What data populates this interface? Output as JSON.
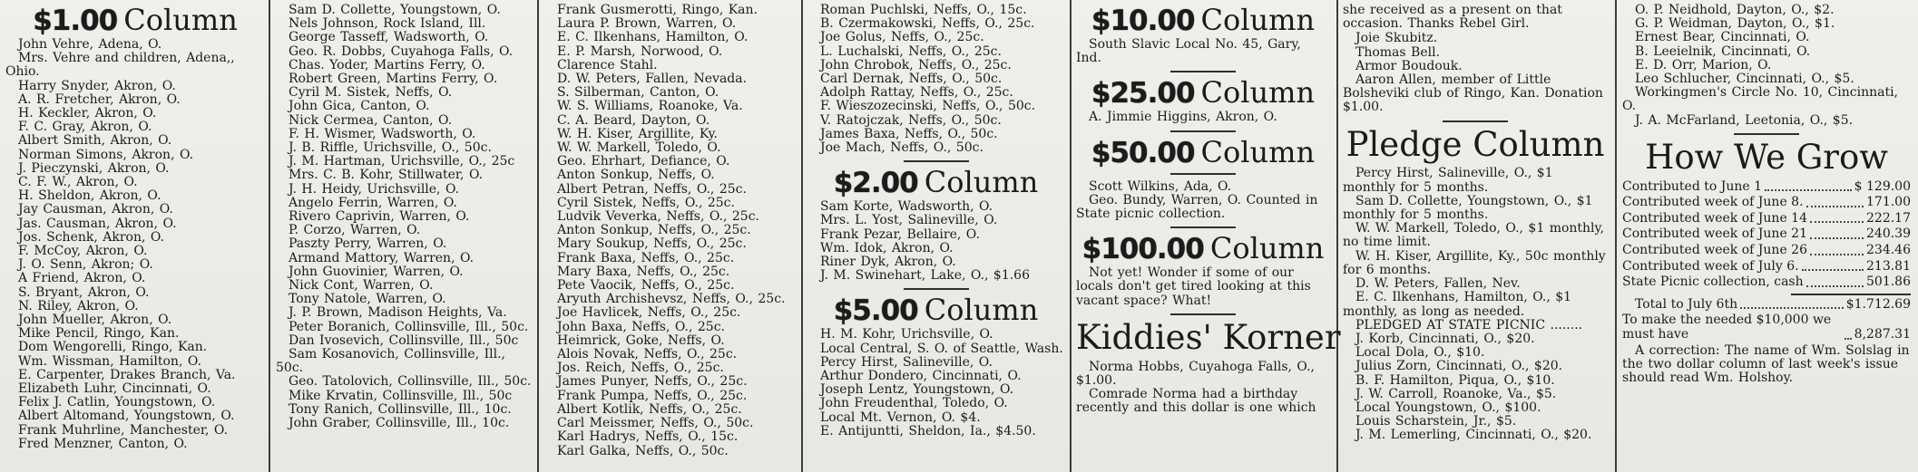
{
  "columns": {
    "col1": {
      "heading": {
        "amount": "$1.00",
        "word": "Column"
      },
      "entries": [
        "John Vehre, Adena, O.",
        "Mrs. Vehre and children, Adena,, Ohio.",
        "Harry Snyder, Akron, O.",
        "A. R. Fretcher, Akron, O.",
        "H. Keckler, Akron, O.",
        "F. C. Gray, Akron, O.",
        "Albert Smith, Akron, O.",
        "Norman Simons, Akron, O.",
        "J. Pieczynski, Akron, O.",
        "C. F. W., Akron, O.",
        "H. Sheldon, Akron, O.",
        "Jay Causman, Akron, O.",
        "Jas. Causman, Akron, O.",
        "Jos. Schenk, Akron, O.",
        "F. McCoy, Akron, O.",
        "J. O. Senn, Akron; O.",
        "A Friend, Akron, O.",
        "S. Bryant, Akron, O.",
        "N. Riley, Akron, O.",
        "John Mueller, Akron, O.",
        "Mike Pencil, Ringo, Kan.",
        "Dom Wengorelli, Ringo, Kan.",
        "Wm. Wissman, Hamilton, O.",
        "E. Carpenter, Drakes Branch, Va.",
        "Elizabeth Luhr, Cincinnati, O.",
        "Felix J. Catlin, Youngstown, O.",
        "Albert Altomand, Youngstown, O.",
        "Frank Muhrline, Manchester, O.",
        "Fred Menzner, Canton, O."
      ]
    },
    "col2": {
      "entries": [
        "Sam D. Collette, Youngstown, O.",
        "Nels Johnson, Rock Island, Ill.",
        "George Tasseff, Wadsworth, O.",
        "Geo. R. Dobbs, Cuyahoga Falls, O.",
        "Chas. Yoder, Martins Ferry, O.",
        "Robert Green, Martins Ferry, O.",
        "Cyril M. Sistek, Neffs, O.",
        "John Gica, Canton, O.",
        "Nick Cermea, Canton, O.",
        "F. H. Wismer, Wadsworth, O.",
        "J. B. Riffle, Urichsville, O., 50c.",
        "J. M. Hartman, Urichsville, O., 25c",
        "Mrs. C. B. Kohr, Stillwater, O.",
        "J. H. Heidy, Urichsville, O.",
        "Angelo Ferrin, Warren, O.",
        "Rivero Caprivin, Warren, O.",
        "P. Corzo, Warren, O.",
        "Paszty Perry, Warren, O.",
        "Armand Mattory, Warren, O.",
        "John Guovinier, Warren, O.",
        "Nick Cont, Warren, O.",
        "Tony Natole, Warren, O.",
        "J. P. Brown, Madison Heights, Va.",
        "Peter Boranich, Collinsville, Ill., 50c.",
        "Dan Ivosevich, Collinsville, Ill., 50c",
        "Sam Kosanovich, Collinsville, Ill., 50c.",
        "Geo. Tatolovich, Collinsville, Ill., 50c.",
        "Mike Krvatin, Collinsville, Ill., 50c",
        "Tony Ranich, Collinsville, Ill., 10c.",
        "John Graber, Collinsville, Ill., 10c."
      ]
    },
    "col3": {
      "entries": [
        "Frank Gusmerotti, Ringo, Kan.",
        "Laura P. Brown, Warren, O.",
        "E. C. Ilkenhans, Hamilton, O.",
        "E. P. Marsh, Norwood, O.",
        "Clarence Stahl.",
        "D. W. Peters, Fallen, Nevada.",
        "S. Silberman, Canton, O.",
        "W. S. Williams, Roanoke, Va.",
        "C. A. Beard, Dayton, O.",
        "W. H. Kiser, Argillite, Ky.",
        "W. W. Markell, Toledo, O.",
        "Geo. Ehrhart, Defiance, O.",
        "Anton Sonkup, Neffs, O.",
        "Albert Petran, Neffs, O., 25c.",
        "Cyril Sistek, Neffs, O., 25c.",
        "Ludvik Veverka, Neffs, O., 25c.",
        "Anton Sonkup, Neffs, O., 25c.",
        "Mary Soukup, Neffs, O., 25c.",
        "Frank Baxa, Neffs, O., 25c.",
        "Mary Baxa, Neffs, O., 25c.",
        "Pete Vaocik, Neffs, O., 25c.",
        "Aryuth Archishevsz, Neffs, O., 25c.",
        "Joe Havlicek, Neffs, O., 25c.",
        "John Baxa, Neffs, O., 25c.",
        "Heimrick, Goke, Neffs, O.",
        "Alois Novak, Neffs, O., 25c.",
        "Jos. Reich, Neffs, O., 25c.",
        "James Punyer, Neffs, O., 25c.",
        "Frank Pumpa, Neffs, O., 25c.",
        "Albert Kotlik, Neffs, O., 25c.",
        "Carl Meissmer, Neffs, O., 50c.",
        "Karl Hadrys, Neffs, O., 15c.",
        "Karl Galka, Neffs, O., 50c."
      ]
    },
    "col4": {
      "entries_top": [
        "Roman Puchlski, Neffs, O., 15c.",
        "B. Czermakowski, Neffs, O., 25c.",
        "Joe Golus, Neffs, O., 25c.",
        "L. Luchalski, Neffs, O., 25c.",
        "John Chrobok, Neffs, O., 25c.",
        "Carl Dernak, Neffs, O., 50c.",
        "Adolph Rattay, Neffs, O., 25c.",
        "F. Wieszozecinski, Neffs, O., 50c.",
        "V. Ratojczak, Neffs, O., 50c.",
        "James Baxa, Neffs, O., 50c.",
        "Joe Mach, Neffs, O., 50c."
      ],
      "heading2": {
        "amount": "$2.00",
        "word": "Column"
      },
      "entries2": [
        "Sam Korte, Wadsworth, O.",
        "Mrs. L. Yost, Salineville, O.",
        "Frank Pezar, Bellaire, O.",
        "Wm. Idok, Akron, O.",
        "Riner Dyk, Akron, O.",
        "J. M. Swinehart, Lake, O., $1.66"
      ],
      "heading5": {
        "amount": "$5.00",
        "word": "Column"
      },
      "entries5": [
        "H. M. Kohr, Urichsville, O.",
        "Local Central, S. O. of Seattle, Wash.",
        "Percy Hirst, Salineville, O.",
        "Arthur Dondero, Cincinnati, O.",
        "Joseph Lentz, Youngstown, O.",
        "John Freudenthal, Toledo, O.",
        "Local Mt. Vernon, O. $4.",
        "E. Antijuntti, Sheldon, Ia., $4.50."
      ]
    },
    "col5": {
      "heading10": {
        "amount": "$10.00",
        "word": "Column"
      },
      "entries10": [
        "South Slavic Local No. 45, Gary, Ind."
      ],
      "heading25": {
        "amount": "$25.00",
        "word": "Column"
      },
      "entries25": [
        "A. Jimmie Higgins, Akron, O."
      ],
      "heading50": {
        "amount": "$50.00",
        "word": "Column"
      },
      "entries50": [
        "Scott Wilkins, Ada, O.",
        "Geo. Bundy, Warren, O. Counted in State picnic collection."
      ],
      "heading100": {
        "amount": "$100.00",
        "word": "Column"
      },
      "text100": "Not yet! Wonder if some of our locals don't get tired looking at this vacant space? What!",
      "kiddies_heading": "Kiddies' Korner",
      "kiddies_entries": [
        "Norma Hobbs, Cuyahoga Falls, O., $1.00."
      ],
      "kiddies_text": "Comrade Norma had a birthday recently and this dollar is one which"
    },
    "col6": {
      "continuation": "she received as a present on that occasion. Thanks Rebel Girl.",
      "entries_top": [
        "Joie Skubitz.",
        "Thomas Bell.",
        "Armor Boudouk."
      ],
      "aaron_note": "Aaron Allen, member of Little Bolsheviki club of Ringo, Kan. Donation $1.00.",
      "pledge_heading": "Pledge Column",
      "pledge_entries": [
        "Percy Hirst, Salineville, O., $1 monthly for 5 months.",
        "Sam D. Collette, Youngstown, O., $1 monthly for 5 months.",
        "W. W. Markell, Toledo, O., $1 monthly, no time limit.",
        "W. H. Kiser, Argillite, Ky., 50c monthly for 6 months.",
        "D. W. Peters, Fallen, Nev.",
        "E. C. Ilkenhans, Hamilton, O., $1 monthly, as long as needed.",
        "PLEDGED AT STATE PICNIC ........",
        "J. Korb, Cincinnati, O., $20.",
        "Local Dola, O., $10.",
        "Julius Zorn, Cincinnati, O., $20.",
        "B. F. Hamilton, Piqua, O., $10.",
        "J. W. Carroll, Roanoke, Va., $5.",
        "Local Youngstown, O., $100.",
        "Louis Scharstein, Jr., $5.",
        "J. M. Lemerling, Cincinnati, O., $20."
      ]
    },
    "col7": {
      "entries_top": [
        "O. P. Neidhold, Dayton, O., $2.",
        "G. P. Weidman, Dayton, O., $1.",
        "Ernest Bear, Cincinnati, O.",
        "B. Leeielnik, Cincinnati, O.",
        "E. D. Orr, Marion, O.",
        "Leo Schlucher, Cincinnati, O., $5.",
        "Workingmen's Circle No. 10, Cincinnati, O.",
        "J. A. McFarland, Leetonia, O., $5."
      ],
      "grow_heading": "How We Grow",
      "grow_rows": [
        {
          "label": "Contributed to June 1",
          "value": "$  129.00"
        },
        {
          "label": "Contributed week of June 8.",
          "value": "171.00"
        },
        {
          "label": "Contributed week of June 14",
          "value": "222.17"
        },
        {
          "label": "Contributed week of June 21",
          "value": "240.39"
        },
        {
          "label": "Contributed week of June 26",
          "value": "234.46"
        },
        {
          "label": "Contributed week of July 6.",
          "value": "213.81"
        },
        {
          "label": "State Picnic collection, cash",
          "value": "501.86"
        }
      ],
      "total_row": {
        "label": "Total to July 6th",
        "value": "$1.712.69"
      },
      "needed_row": {
        "label": "To make the needed $10,000 we must have",
        "value": "8,287.31"
      },
      "correction": "A correction:  The name of Wm. Solslag in the two dollar column of last week's issue should read Wm. Holshoy."
    }
  }
}
